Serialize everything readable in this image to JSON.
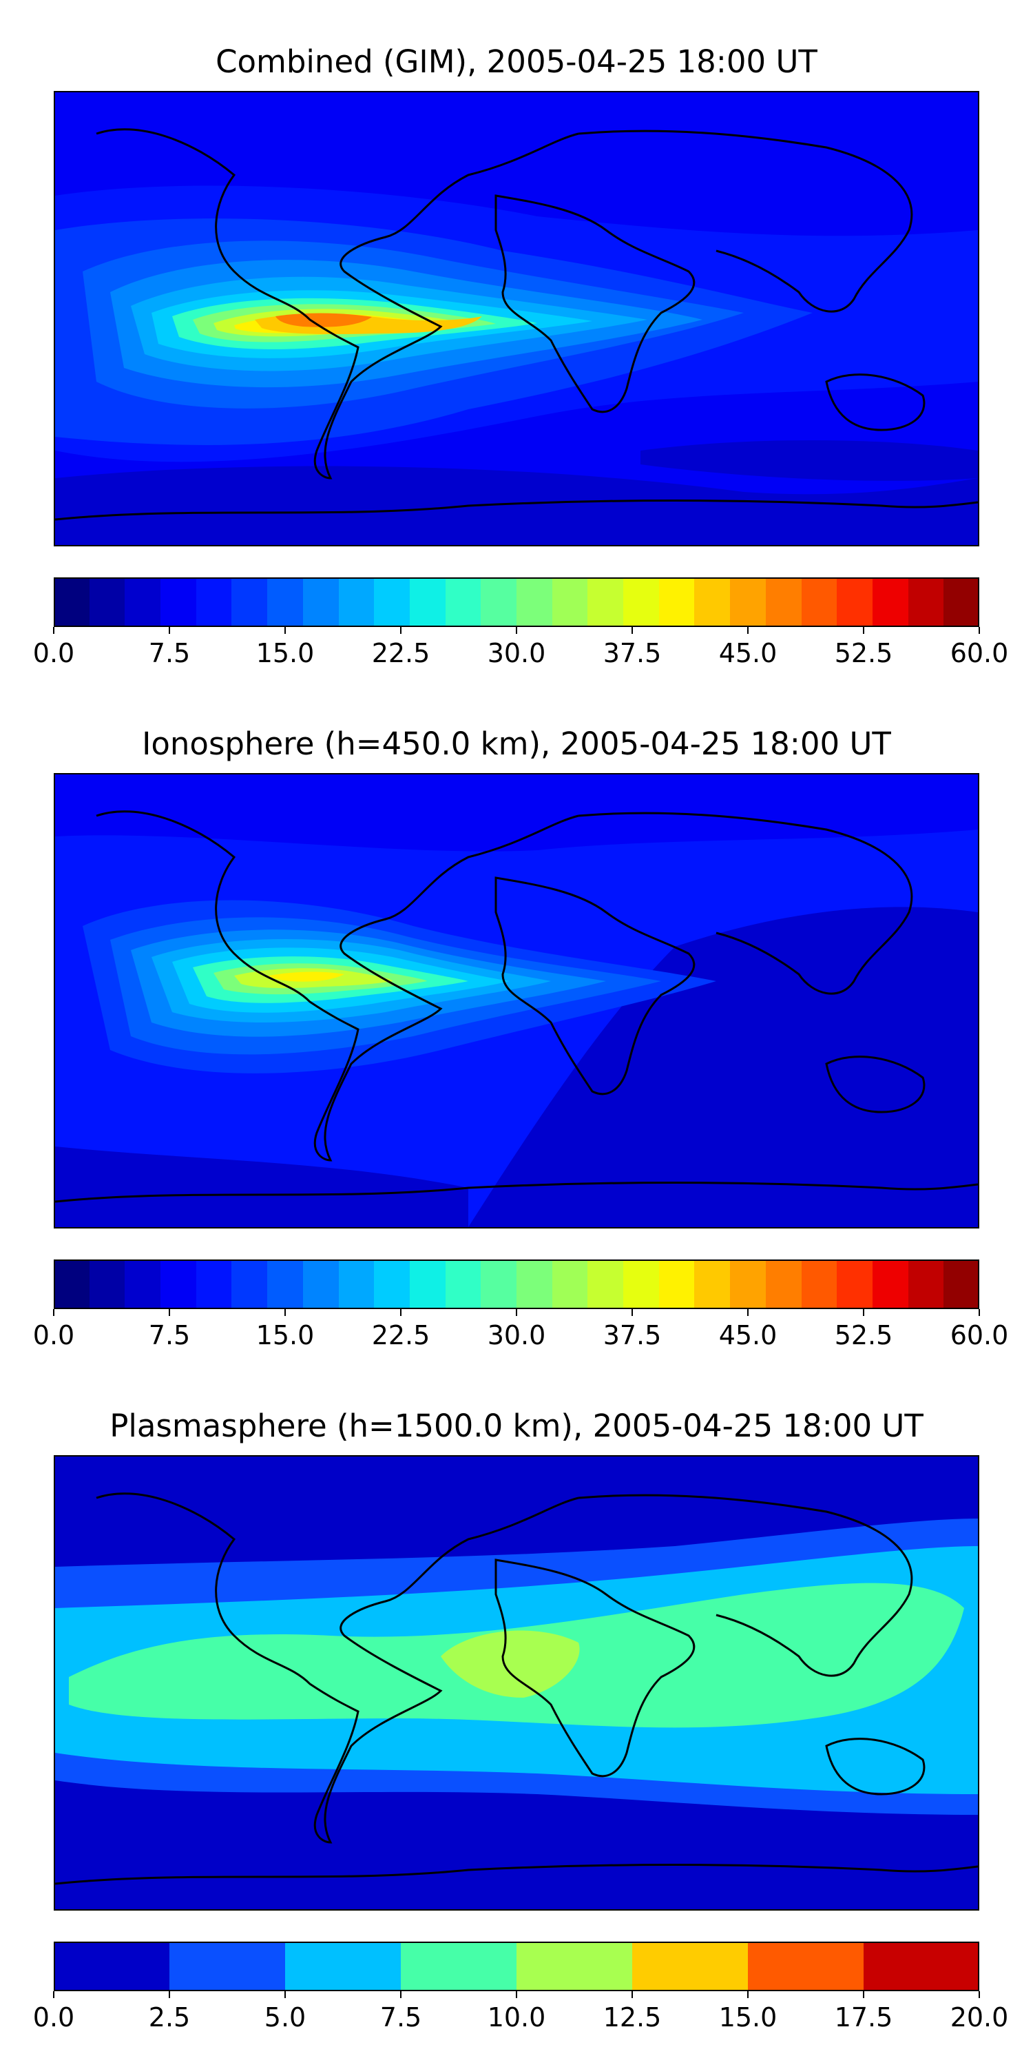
{
  "panels": [
    {
      "title": "Combined (GIM), 2005-04-25 18:00 UT",
      "cmap": [
        "#00007f",
        "#0000a6",
        "#0000ce",
        "#0000f6",
        "#0014ff",
        "#0038ff",
        "#005cff",
        "#0084ff",
        "#00a8ff",
        "#00ccff",
        "#0ff0e6",
        "#30ffc6",
        "#56ffa0",
        "#7cff7a",
        "#a0ff56",
        "#c6ff30",
        "#e6ff0f",
        "#fff200",
        "#ffc900",
        "#ffa300",
        "#ff7e00",
        "#ff5900",
        "#ff3000",
        "#ee0000",
        "#c10000",
        "#930000"
      ],
      "colorbar_ticks": [
        "0.0",
        "7.5",
        "15.0",
        "22.5",
        "30.0",
        "37.5",
        "45.0",
        "52.5",
        "60.0"
      ]
    },
    {
      "title": "Ionosphere  (h=450.0 km), 2005-04-25 18:00 UT",
      "cmap": [
        "#00007f",
        "#0000a6",
        "#0000ce",
        "#0000f6",
        "#0014ff",
        "#0038ff",
        "#005cff",
        "#0084ff",
        "#00a8ff",
        "#00ccff",
        "#0ff0e6",
        "#30ffc6",
        "#56ffa0",
        "#7cff7a",
        "#a0ff56",
        "#c6ff30",
        "#e6ff0f",
        "#fff200",
        "#ffc900",
        "#ffa300",
        "#ff7e00",
        "#ff5900",
        "#ff3000",
        "#ee0000",
        "#c10000",
        "#930000"
      ],
      "colorbar_ticks": [
        "0.0",
        "7.5",
        "15.0",
        "22.5",
        "30.0",
        "37.5",
        "45.0",
        "52.5",
        "60.0"
      ]
    },
    {
      "title": "Plasmasphere (h=1500.0 km), 2005-04-25 18:00 UT",
      "cmap": [
        "#0000c8",
        "#0a50ff",
        "#00c0ff",
        "#46ffa8",
        "#a8ff50",
        "#ffcc00",
        "#ff5a00",
        "#c80000"
      ],
      "colorbar_ticks": [
        "0.0",
        "2.5",
        "5.0",
        "7.5",
        "10.0",
        "12.5",
        "15.0",
        "17.5",
        "20.0"
      ]
    }
  ]
}
